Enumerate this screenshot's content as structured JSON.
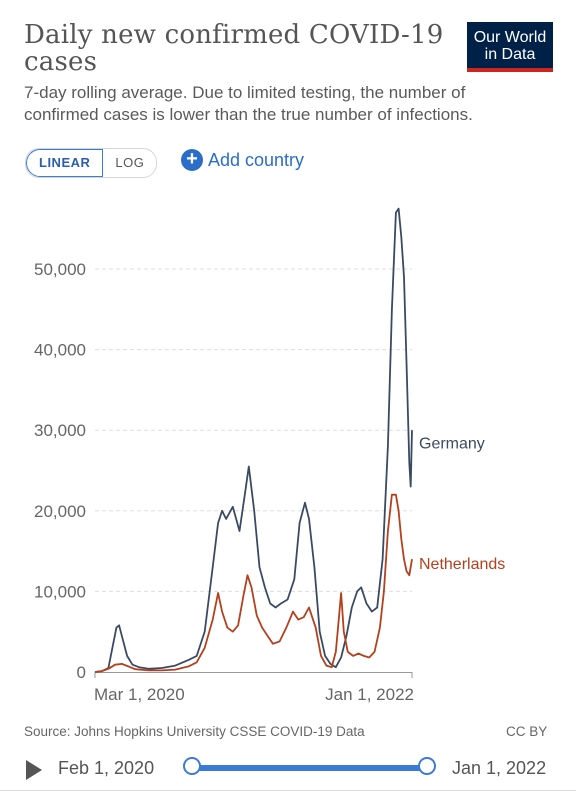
{
  "header": {
    "title": "Daily new confirmed COVID-19 cases",
    "subtitle": "7-day rolling average. Due to limited testing, the number of confirmed cases is lower than the true number of infections.",
    "logo_line1": "Our World",
    "logo_line2": "in Data"
  },
  "controls": {
    "linear_label": "LINEAR",
    "log_label": "LOG",
    "add_country_label": "Add country",
    "selected_scale": "LINEAR"
  },
  "footer": {
    "source": "Source: Johns Hopkins University CSSE COVID-19 Data",
    "license": "CC BY"
  },
  "timeline": {
    "start_label": "Feb 1, 2020",
    "end_label": "Jan 1, 2022"
  },
  "colors": {
    "germany": "#3b4a63",
    "netherlands": "#b5401d",
    "grid": "#dddddd",
    "accent": "#3b7bd8"
  },
  "chart_data": {
    "type": "line",
    "title": "Daily new confirmed COVID-19 cases",
    "xlabel": "",
    "ylabel": "",
    "ylim": [
      0,
      58000
    ],
    "yticks": [
      0,
      10000,
      20000,
      30000,
      40000,
      50000
    ],
    "ytick_labels": [
      "0",
      "10,000",
      "20,000",
      "30,000",
      "40,000",
      "50,000"
    ],
    "xtick_labels": [
      "Mar 1, 2020",
      "Jan 1, 2022"
    ],
    "grid": true,
    "x_unit": "months since Feb 2020",
    "series": [
      {
        "name": "Germany",
        "points": [
          [
            0,
            0
          ],
          [
            0.5,
            100
          ],
          [
            1,
            500
          ],
          [
            1.3,
            3000
          ],
          [
            1.6,
            5500
          ],
          [
            1.8,
            5800
          ],
          [
            2.0,
            4500
          ],
          [
            2.4,
            2000
          ],
          [
            2.8,
            900
          ],
          [
            3.3,
            600
          ],
          [
            4,
            400
          ],
          [
            5,
            500
          ],
          [
            6,
            800
          ],
          [
            7,
            1500
          ],
          [
            7.6,
            2000
          ],
          [
            8.2,
            5000
          ],
          [
            8.8,
            13000
          ],
          [
            9.2,
            18500
          ],
          [
            9.5,
            20000
          ],
          [
            9.8,
            19000
          ],
          [
            10.3,
            20500
          ],
          [
            10.8,
            17500
          ],
          [
            11.2,
            22000
          ],
          [
            11.5,
            25500
          ],
          [
            11.9,
            20000
          ],
          [
            12.3,
            13000
          ],
          [
            12.7,
            10500
          ],
          [
            13.1,
            8500
          ],
          [
            13.5,
            8000
          ],
          [
            13.9,
            8500
          ],
          [
            14.4,
            9000
          ],
          [
            14.9,
            11500
          ],
          [
            15.3,
            18500
          ],
          [
            15.7,
            21000
          ],
          [
            16.0,
            19000
          ],
          [
            16.4,
            13000
          ],
          [
            16.8,
            5000
          ],
          [
            17.2,
            2000
          ],
          [
            17.6,
            1000
          ],
          [
            18.0,
            600
          ],
          [
            18.4,
            1800
          ],
          [
            18.8,
            4500
          ],
          [
            19.2,
            8000
          ],
          [
            19.6,
            10000
          ],
          [
            19.9,
            10500
          ],
          [
            20.3,
            8500
          ],
          [
            20.7,
            7500
          ],
          [
            21.1,
            8000
          ],
          [
            21.5,
            14000
          ],
          [
            21.9,
            28000
          ],
          [
            22.2,
            45000
          ],
          [
            22.5,
            57000
          ],
          [
            22.7,
            57500
          ],
          [
            22.9,
            54000
          ],
          [
            23.1,
            49000
          ],
          [
            23.3,
            38000
          ],
          [
            23.5,
            26000
          ],
          [
            23.6,
            23000
          ],
          [
            23.7,
            30000
          ]
        ]
      },
      {
        "name": "Netherlands",
        "points": [
          [
            0,
            0
          ],
          [
            0.5,
            100
          ],
          [
            1,
            400
          ],
          [
            1.5,
            900
          ],
          [
            2.0,
            1000
          ],
          [
            2.5,
            700
          ],
          [
            3.0,
            350
          ],
          [
            4,
            200
          ],
          [
            5,
            200
          ],
          [
            6,
            300
          ],
          [
            7,
            700
          ],
          [
            7.6,
            1200
          ],
          [
            8.2,
            3000
          ],
          [
            8.8,
            6500
          ],
          [
            9.2,
            9800
          ],
          [
            9.5,
            7500
          ],
          [
            9.9,
            5500
          ],
          [
            10.3,
            5000
          ],
          [
            10.7,
            5800
          ],
          [
            11.1,
            9500
          ],
          [
            11.4,
            12000
          ],
          [
            11.7,
            10500
          ],
          [
            12.1,
            7000
          ],
          [
            12.5,
            5500
          ],
          [
            12.9,
            4500
          ],
          [
            13.3,
            3500
          ],
          [
            13.8,
            3800
          ],
          [
            14.3,
            5500
          ],
          [
            14.8,
            7500
          ],
          [
            15.2,
            6500
          ],
          [
            15.6,
            6800
          ],
          [
            16.0,
            8000
          ],
          [
            16.5,
            5500
          ],
          [
            16.9,
            2000
          ],
          [
            17.3,
            800
          ],
          [
            17.7,
            600
          ],
          [
            18.0,
            2500
          ],
          [
            18.2,
            6000
          ],
          [
            18.4,
            9800
          ],
          [
            18.6,
            5000
          ],
          [
            18.9,
            2500
          ],
          [
            19.3,
            2000
          ],
          [
            19.7,
            2300
          ],
          [
            20.1,
            2000
          ],
          [
            20.5,
            1800
          ],
          [
            20.9,
            2500
          ],
          [
            21.3,
            5500
          ],
          [
            21.6,
            10000
          ],
          [
            21.9,
            17500
          ],
          [
            22.2,
            22000
          ],
          [
            22.5,
            22000
          ],
          [
            22.7,
            20000
          ],
          [
            22.9,
            16500
          ],
          [
            23.1,
            14000
          ],
          [
            23.3,
            12500
          ],
          [
            23.5,
            12000
          ],
          [
            23.7,
            14000
          ]
        ]
      }
    ]
  }
}
